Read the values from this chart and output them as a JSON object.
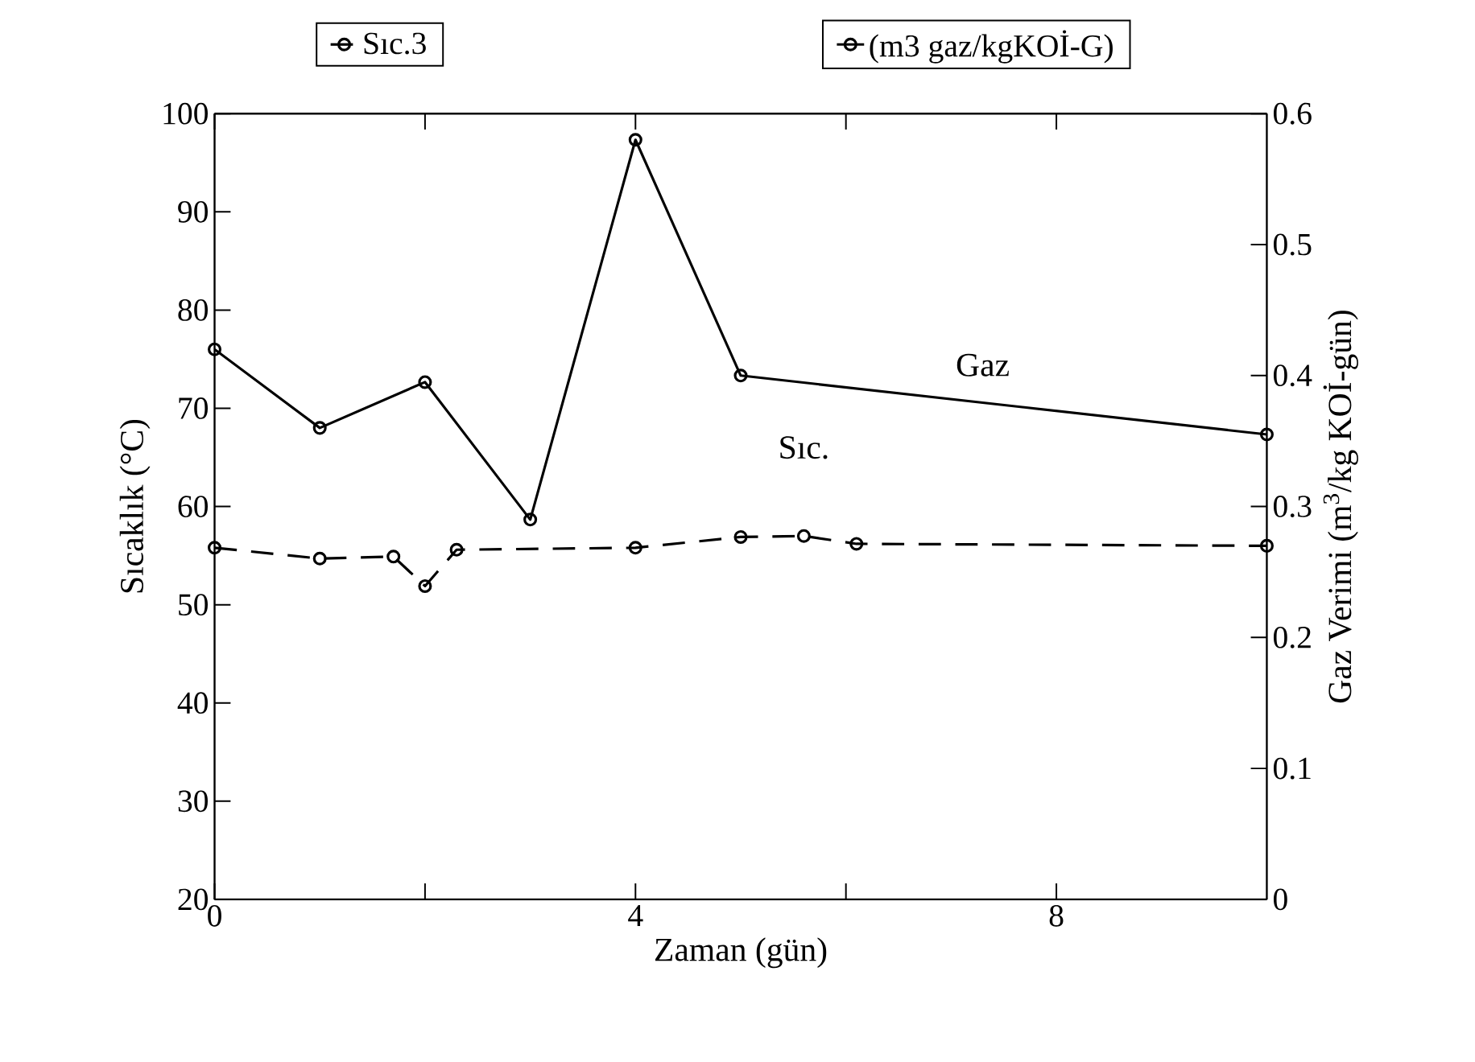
{
  "chart_data": {
    "type": "line",
    "xlabel": "Zaman (gün)",
    "ylabel": "Sıcaklık (°C)",
    "y2label": "Gaz Verimi (m$^{3}$/kg KOİ-gün)",
    "xlim": [
      0,
      10
    ],
    "xticks": [
      0,
      {
        "value": 2,
        "label": null
      },
      4,
      {
        "value": 6,
        "label": null
      },
      8
    ],
    "ylim": [
      20,
      100
    ],
    "yticks": [
      20,
      30,
      40,
      50,
      60,
      70,
      80,
      90,
      100
    ],
    "y2lim": [
      0,
      0.6
    ],
    "y2ticks": [
      0,
      0.1,
      0.2,
      0.3,
      0.4,
      0.5,
      0.6
    ],
    "legend": "top",
    "grid": false,
    "series": [
      {
        "name": "Sıc.3",
        "color": "#000000",
        "line_style": "dashed",
        "marker": "circle",
        "x": [
          0,
          1,
          1.7,
          2,
          2.3,
          4,
          5,
          5.6,
          6.1,
          10
        ],
        "values": [
          55.8,
          54.7,
          54.9,
          51.9,
          55.6,
          55.8,
          56.9,
          57,
          56.2,
          56
        ]
      },
      {
        "name": "(m3 gaz/kgKOİ-G)",
        "color": "#000000",
        "line_style": "solid",
        "marker": "circle",
        "axis": "y2",
        "x": [
          0,
          1,
          2,
          3,
          4,
          5,
          10
        ],
        "values": [
          0.42,
          0.36,
          0.395,
          0.29,
          0.58,
          0.4,
          0.355
        ]
      }
    ],
    "annotations": [
      "Gaz",
      "Sıc."
    ]
  }
}
